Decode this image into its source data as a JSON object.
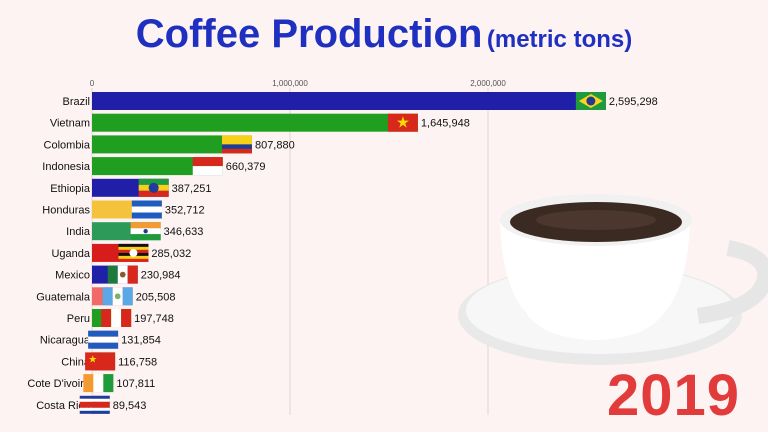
{
  "title": {
    "main": "Coffee Production",
    "sub": "(metric tons)"
  },
  "year": "2019",
  "chart_data": {
    "type": "bar",
    "orientation": "horizontal",
    "title": "Coffee Production (metric tons)",
    "xlim": [
      0,
      2600000
    ],
    "ticks": [
      0,
      1000000,
      2000000
    ],
    "tick_labels": [
      "0",
      "1,000,000",
      "2,000,000"
    ],
    "grid": true,
    "categories": [
      "Brazil",
      "Vietnam",
      "Colombia",
      "Indonesia",
      "Ethiopia",
      "Honduras",
      "India",
      "Uganda",
      "Mexico",
      "Guatemala",
      "Peru",
      "Nicaragua",
      "China",
      "Cote D'ivoire",
      "Costa Rica"
    ],
    "values": [
      2595298,
      1645948,
      807880,
      660379,
      387251,
      352712,
      346633,
      285032,
      230984,
      205508,
      197748,
      131854,
      116758,
      107811,
      89543
    ],
    "value_labels": [
      "2,595,298",
      "1,645,948",
      "807,880",
      "660,379",
      "387,251",
      "352,712",
      "346,633",
      "285,032",
      "230,984",
      "205,508",
      "197,748",
      "131,854",
      "116,758",
      "107,811",
      "89,543"
    ],
    "bar_colors": [
      "#1f1fa8",
      "#1f9e1f",
      "#1f9e1f",
      "#1f9e1f",
      "#1f1fa8",
      "#f5c23c",
      "#2e9a5a",
      "#d81b1b",
      "#1f1fa8",
      "#f06a6a",
      "#1f9e1f",
      "#f06a6a",
      "#1f9e1f",
      "#f5c23c",
      "#4aa3df"
    ],
    "flags": [
      "brazil-flag-icon",
      "vietnam-flag-icon",
      "colombia-flag-icon",
      "indonesia-flag-icon",
      "ethiopia-flag-icon",
      "honduras-flag-icon",
      "india-flag-icon",
      "uganda-flag-icon",
      "mexico-flag-icon",
      "guatemala-flag-icon",
      "peru-flag-icon",
      "nicaragua-flag-icon",
      "china-flag-icon",
      "cote-divoire-flag-icon",
      "costa-rica-flag-icon"
    ]
  },
  "decor": {
    "image": "coffee-cup-icon"
  }
}
